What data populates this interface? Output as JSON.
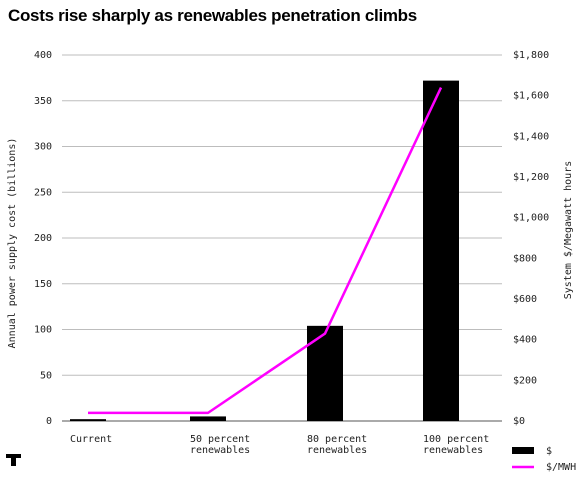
{
  "title": "Costs rise sharply as renewables penetration climbs",
  "chart_data": {
    "type": "bar",
    "categories": [
      [
        "Current"
      ],
      [
        "50 percent",
        "renewables"
      ],
      [
        "80 percent",
        "renewables"
      ],
      [
        "100 percent",
        "renewables"
      ]
    ],
    "series": [
      {
        "name": "$",
        "type": "bar",
        "axis": "left",
        "color": "#000000",
        "values": [
          2,
          5,
          104,
          372
        ]
      },
      {
        "name": "$/MWH",
        "type": "line",
        "axis": "right",
        "color": "#ff00ff",
        "values": [
          40,
          40,
          430,
          1640
        ]
      }
    ],
    "ylabel_left": "Annual power supply cost (billions)",
    "ylabel_right": "System $/Megawatt hours",
    "ylim_left": [
      0,
      400
    ],
    "ylim_right": [
      0,
      1800
    ],
    "yticks_left": [
      0,
      50,
      100,
      150,
      200,
      250,
      300,
      350,
      400
    ],
    "yticks_right": [
      0,
      200,
      400,
      600,
      800,
      1000,
      1200,
      1400,
      1600,
      1800
    ],
    "ytick_labels_right": [
      "$0",
      "$200",
      "$400",
      "$600",
      "$800",
      "$1,000",
      "$1,200",
      "$1,400",
      "$1,600",
      "$1,800"
    ],
    "grid": true,
    "legend_position": "bottom-right"
  }
}
